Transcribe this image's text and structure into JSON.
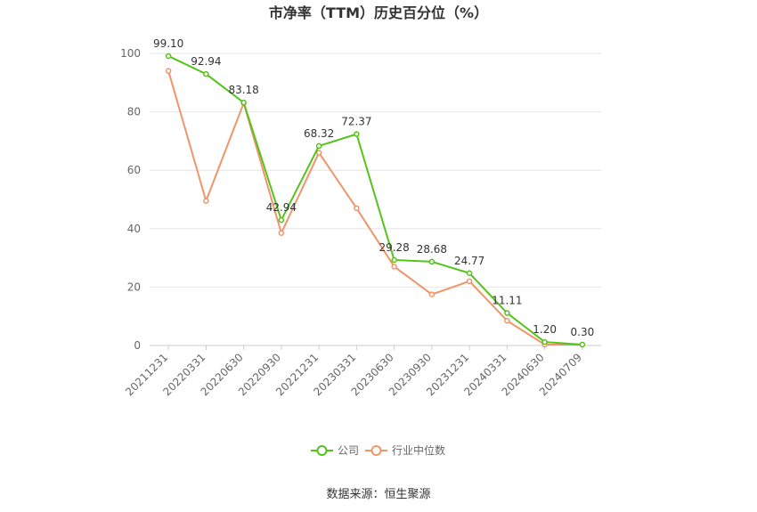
{
  "chart_data": {
    "type": "line",
    "title": "市净率（TTM）历史百分位（%）",
    "categories": [
      "20211231",
      "20220331",
      "20220630",
      "20220930",
      "20221231",
      "20230331",
      "20230630",
      "20230930",
      "20231231",
      "20240331",
      "20240630",
      "20240709"
    ],
    "ylim": [
      0,
      100
    ],
    "yticks": [
      0,
      20,
      40,
      60,
      80,
      100
    ],
    "grid": true,
    "legend_position": "bottom-center",
    "series": [
      {
        "name": "公司",
        "color": "#52c41a",
        "values": [
          99.1,
          92.94,
          83.18,
          42.94,
          68.32,
          72.37,
          29.28,
          28.68,
          24.77,
          11.11,
          1.2,
          0.3
        ],
        "labels": [
          "99.10",
          "92.94",
          "83.18",
          "42.94",
          "68.32",
          "72.37",
          "29.28",
          "28.68",
          "24.77",
          "11.11",
          "1.20",
          "0.30"
        ]
      },
      {
        "name": "行业中位数",
        "color": "#f0956a",
        "values": [
          94,
          49.5,
          83,
          38.5,
          66,
          47,
          27,
          17.5,
          22,
          8.5,
          0.3,
          0.3
        ]
      }
    ]
  },
  "source_text": "数据来源：恒生聚源"
}
